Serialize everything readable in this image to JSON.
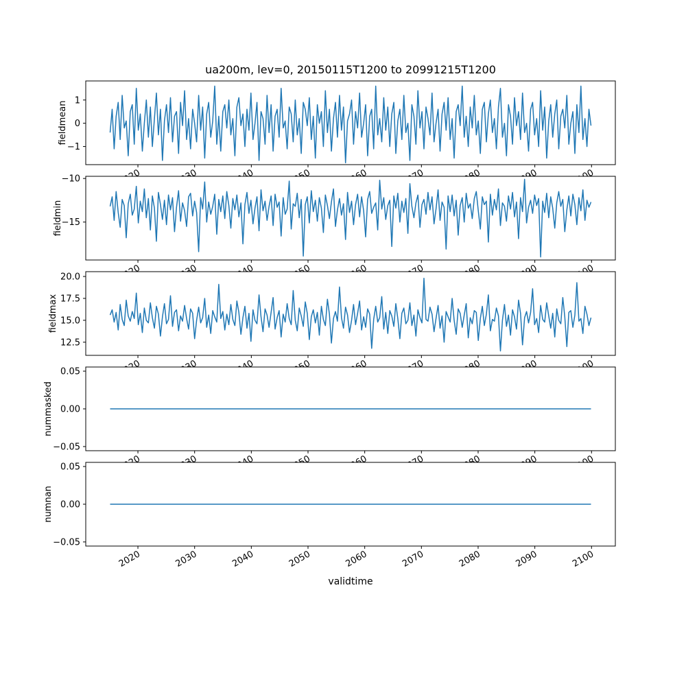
{
  "chart_data": {
    "type": "line",
    "title": "ua200m, lev=0, 20150115T1200 to 20991215T1200",
    "xlabel": "validtime",
    "line_color": "#1f77b4",
    "background_color": "#ffffff",
    "xlim": [
      2010.8,
      2104.2
    ],
    "x_range": [
      2015.1,
      2099.9
    ],
    "x_tick_rotation_deg": 30,
    "grid": false,
    "legend": "none",
    "x_ticks": [
      {
        "value": 2020,
        "label": "2020"
      },
      {
        "value": 2030,
        "label": "2030"
      },
      {
        "value": 2040,
        "label": "2040"
      },
      {
        "value": 2050,
        "label": "2050"
      },
      {
        "value": 2060,
        "label": "2060"
      },
      {
        "value": 2070,
        "label": "2070"
      },
      {
        "value": 2080,
        "label": "2080"
      },
      {
        "value": 2090,
        "label": "2090"
      },
      {
        "value": 2100,
        "label": "2100"
      }
    ],
    "subplots": [
      {
        "ylabel": "fieldmean",
        "ylim": [
          -1.78,
          1.82
        ],
        "yticks": [
          {
            "value": -1,
            "label": "−1"
          },
          {
            "value": 0,
            "label": "0"
          },
          {
            "value": 1,
            "label": "1"
          }
        ],
        "values": [
          -0.4,
          0.6,
          -1.1,
          0.3,
          0.9,
          -0.7,
          1.2,
          -0.2,
          0.1,
          -1.4,
          0.5,
          0.8,
          -0.9,
          1.5,
          -0.3,
          0.4,
          -1.2,
          0.0,
          1.0,
          -0.6,
          0.7,
          -1.0,
          0.2,
          1.3,
          -0.5,
          0.6,
          -1.6,
          0.1,
          0.8,
          -0.4,
          1.1,
          -0.8,
          0.3,
          0.5,
          -1.3,
          0.9,
          -0.1,
          1.4,
          -0.7,
          0.2,
          -1.1,
          0.6,
          0.0,
          -0.8,
          1.2,
          -0.3,
          0.7,
          -1.5,
          0.4,
          0.9,
          -0.6,
          0.1,
          1.6,
          -0.9,
          0.3,
          -1.2,
          0.5,
          0.8,
          -0.2,
          1.0,
          -0.5,
          0.2,
          -1.4,
          0.7,
          1.1,
          -0.1,
          0.4,
          -1.0,
          0.6,
          -0.3,
          1.3,
          -0.7,
          0.0,
          0.9,
          -1.6,
          0.5,
          0.2,
          -0.9,
          1.2,
          -0.4,
          0.8,
          -1.2,
          0.3,
          0.6,
          -0.6,
          1.5,
          -0.2,
          0.1,
          -1.1,
          0.7,
          0.4,
          -0.8,
          1.0,
          -0.5,
          0.2,
          -1.3,
          0.9,
          0.6,
          -0.1,
          1.1,
          -0.7,
          0.3,
          -1.5,
          0.8,
          0.0,
          0.5,
          -1.0,
          1.4,
          -0.4,
          0.6,
          -1.2,
          0.2,
          0.9,
          -0.6,
          1.2,
          -0.3,
          0.7,
          -1.7,
          0.1,
          0.4,
          1.0,
          -0.9,
          0.5,
          -0.2,
          1.3,
          -0.6,
          0.0,
          0.8,
          -1.4,
          0.3,
          0.6,
          -1.1,
          1.6,
          -0.5,
          0.2,
          -0.8,
          1.1,
          -0.3,
          0.7,
          -1.0,
          0.4,
          0.9,
          -1.3,
          0.1,
          0.6,
          -0.7,
          1.2,
          -0.4,
          0.0,
          -1.6,
          0.8,
          0.3,
          -0.9,
          1.4,
          -0.2,
          0.5,
          -1.1,
          0.7,
          0.2,
          -0.5,
          1.3,
          -0.8,
          0.0,
          0.6,
          -1.2,
          0.4,
          0.9,
          -0.3,
          1.1,
          -0.7,
          0.2,
          -1.5,
          0.5,
          0.8,
          -0.1,
          1.6,
          -0.6,
          0.3,
          -1.0,
          0.7,
          -0.2,
          1.2,
          -0.5,
          0.1,
          -1.3,
          0.6,
          0.9,
          -0.8,
          0.4,
          1.0,
          -0.4,
          0.2,
          -1.1,
          0.7,
          1.5,
          -0.6,
          0.0,
          -1.4,
          0.8,
          0.3,
          -0.9,
          1.1,
          -0.1,
          0.5,
          -0.7,
          1.3,
          -0.4,
          0.0,
          -1.2,
          0.6,
          0.9,
          -0.5,
          0.2,
          -1.0,
          1.4,
          -0.3,
          0.7,
          -1.5,
          0.1,
          0.8,
          -0.6,
          0.4,
          1.0,
          -1.1,
          0.3,
          0.6,
          -0.2,
          1.2,
          -0.9,
          0.0,
          0.5,
          -1.3,
          0.8,
          -0.4,
          1.6,
          -0.7,
          0.2,
          -1.0,
          0.6,
          -0.1
        ]
      },
      {
        "ylabel": "fieldmin",
        "ylim": [
          -19.35,
          -9.75
        ],
        "yticks": [
          {
            "value": -15,
            "label": "−15"
          },
          {
            "value": -10,
            "label": "−10"
          }
        ],
        "values": [
          -13.2,
          -12.1,
          -14.8,
          -11.5,
          -13.9,
          -15.6,
          -12.4,
          -13.1,
          -16.8,
          -12.9,
          -11.8,
          -14.2,
          -13.5,
          -10.9,
          -15.1,
          -12.6,
          -13.8,
          -11.2,
          -14.5,
          -12.3,
          -15.9,
          -12.0,
          -13.4,
          -17.2,
          -11.6,
          -13.0,
          -14.7,
          -12.5,
          -15.3,
          -11.9,
          -13.6,
          -12.2,
          -16.1,
          -13.3,
          -11.4,
          -14.9,
          -12.8,
          -13.7,
          -15.5,
          -12.1,
          -11.7,
          -14.3,
          -12.6,
          -13.9,
          -18.4,
          -12.2,
          -13.5,
          -10.4,
          -15.0,
          -12.7,
          -14.1,
          -13.2,
          -11.8,
          -16.4,
          -12.4,
          -13.8,
          -12.0,
          -14.6,
          -11.5,
          -13.1,
          -15.7,
          -12.3,
          -13.6,
          -11.9,
          -14.4,
          -12.8,
          -17.5,
          -13.0,
          -11.6,
          -14.0,
          -12.5,
          -15.2,
          -13.4,
          -12.1,
          -16.0,
          -11.3,
          -13.7,
          -12.6,
          -14.8,
          -13.2,
          -12.0,
          -15.4,
          -11.8,
          -13.3,
          -12.7,
          -16.6,
          -12.2,
          -14.1,
          -13.5,
          -10.3,
          -15.8,
          -12.9,
          -13.2,
          -11.7,
          -14.5,
          -12.4,
          -18.9,
          -13.0,
          -12.1,
          -15.1,
          -11.4,
          -13.8,
          -12.5,
          -14.9,
          -12.2,
          -13.4,
          -16.2,
          -11.9,
          -13.1,
          -14.6,
          -12.7,
          -11.2,
          -15.5,
          -13.6,
          -12.3,
          -14.2,
          -12.9,
          -17.0,
          -11.6,
          -13.9,
          -12.6,
          -15.3,
          -13.0,
          -11.8,
          -14.4,
          -12.1,
          -13.7,
          -16.7,
          -12.4,
          -11.5,
          -14.0,
          -13.3,
          -12.8,
          -15.9,
          -10.2,
          -13.5,
          -12.2,
          -14.7,
          -13.1,
          -12.5,
          -17.8,
          -12.0,
          -13.4,
          -11.7,
          -15.0,
          -12.6,
          -13.9,
          -12.3,
          -16.3,
          -10.6,
          -13.2,
          -14.5,
          -12.8,
          -11.9,
          -15.6,
          -13.0,
          -12.4,
          -14.1,
          -11.6,
          -13.6,
          -12.1,
          -15.2,
          -13.5,
          -11.3,
          -14.8,
          -12.7,
          -13.3,
          -18.1,
          -12.0,
          -13.8,
          -11.9,
          -14.3,
          -12.5,
          -16.5,
          -13.1,
          -12.2,
          -15.0,
          -11.7,
          -13.4,
          -12.9,
          -14.6,
          -12.3,
          -11.5,
          -13.7,
          -15.8,
          -12.1,
          -13.0,
          -12.6,
          -17.3,
          -11.8,
          -14.2,
          -12.4,
          -13.6,
          -11.2,
          -15.4,
          -12.8,
          -13.2,
          -14.9,
          -12.0,
          -13.5,
          -11.6,
          -14.4,
          -12.7,
          -16.9,
          -12.2,
          -13.8,
          -10.1,
          -15.1,
          -13.3,
          -12.5,
          -14.0,
          -11.9,
          -13.1,
          -12.3,
          -19.0,
          -12.6,
          -13.9,
          -11.7,
          -14.5,
          -12.1,
          -13.4,
          -15.7,
          -12.8,
          -11.5,
          -13.2,
          -12.4,
          -16.1,
          -13.6,
          -12.0,
          -14.3,
          -11.8,
          -13.0,
          -15.3,
          -12.2,
          -13.7,
          -11.3,
          -14.8,
          -12.5,
          -13.3,
          -12.7
        ]
      },
      {
        "ylabel": "fieldmax",
        "ylim": [
          11.0,
          20.55
        ],
        "yticks": [
          {
            "value": 12.5,
            "label": "12.5"
          },
          {
            "value": 15.0,
            "label": "15.0"
          },
          {
            "value": 17.5,
            "label": "17.5"
          },
          {
            "value": 20.0,
            "label": "20.0"
          }
        ],
        "values": [
          15.6,
          16.2,
          14.8,
          15.9,
          13.9,
          16.8,
          15.1,
          14.4,
          17.3,
          15.5,
          14.9,
          16.0,
          15.2,
          18.1,
          14.5,
          15.8,
          13.6,
          16.4,
          15.0,
          14.7,
          17.0,
          15.3,
          14.1,
          16.6,
          15.7,
          13.2,
          15.4,
          16.9,
          14.6,
          15.1,
          17.8,
          14.3,
          15.9,
          16.2,
          13.8,
          15.5,
          14.9,
          16.7,
          15.2,
          14.0,
          16.3,
          15.8,
          12.9,
          15.0,
          16.5,
          14.7,
          15.3,
          17.5,
          14.2,
          15.6,
          13.5,
          16.1,
          15.4,
          14.8,
          19.1,
          15.2,
          16.0,
          13.9,
          15.7,
          14.5,
          16.8,
          15.1,
          14.4,
          17.2,
          15.9,
          13.4,
          15.3,
          16.6,
          14.1,
          15.8,
          12.6,
          16.2,
          15.0,
          14.6,
          17.9,
          15.4,
          13.7,
          16.3,
          15.6,
          14.2,
          15.9,
          17.6,
          14.0,
          15.3,
          16.1,
          13.1,
          15.7,
          14.8,
          16.9,
          15.2,
          14.5,
          18.4,
          15.0,
          13.8,
          16.4,
          15.5,
          14.3,
          17.1,
          15.8,
          12.8,
          15.4,
          16.2,
          14.7,
          15.9,
          13.3,
          16.6,
          15.1,
          14.4,
          17.4,
          15.7,
          12.4,
          15.2,
          16.0,
          14.9,
          18.8,
          15.3,
          14.1,
          16.5,
          15.6,
          13.6,
          15.0,
          16.8,
          14.5,
          15.8,
          17.2,
          13.9,
          15.4,
          14.2,
          16.3,
          15.7,
          11.8,
          15.1,
          16.6,
          14.8,
          15.3,
          17.7,
          14.0,
          15.9,
          13.5,
          16.1,
          15.5,
          14.3,
          16.9,
          15.2,
          12.9,
          15.8,
          16.4,
          14.6,
          15.0,
          17.0,
          14.4,
          15.6,
          13.2,
          16.2,
          15.3,
          14.7,
          19.8,
          15.1,
          14.9,
          16.5,
          15.7,
          13.7,
          15.2,
          16.7,
          14.1,
          15.5,
          12.5,
          16.0,
          15.4,
          14.8,
          17.5,
          15.0,
          13.4,
          16.3,
          15.8,
          14.2,
          15.6,
          16.9,
          13.0,
          15.3,
          14.6,
          16.1,
          15.9,
          12.7,
          15.2,
          16.6,
          14.4,
          15.7,
          17.9,
          13.8,
          15.1,
          14.9,
          16.4,
          15.5,
          11.5,
          15.0,
          16.8,
          14.3,
          15.6,
          13.3,
          16.2,
          15.4,
          14.0,
          17.3,
          15.8,
          12.2,
          15.3,
          16.0,
          14.7,
          15.9,
          18.6,
          14.5,
          15.2,
          13.6,
          16.7,
          15.1,
          14.8,
          17.0,
          15.5,
          14.1,
          15.8,
          13.1,
          16.3,
          15.0,
          14.6,
          17.6,
          15.4,
          12.0,
          15.9,
          16.1,
          14.2,
          15.6,
          19.3,
          14.9,
          15.2,
          13.5,
          16.6,
          15.7,
          14.4,
          15.3
        ]
      },
      {
        "ylabel": "nummasked",
        "ylim": [
          -0.0555,
          0.0555
        ],
        "yticks": [
          {
            "value": -0.05,
            "label": "−0.05"
          },
          {
            "value": 0.0,
            "label": "0.00"
          },
          {
            "value": 0.05,
            "label": "0.05"
          }
        ],
        "constant": 0
      },
      {
        "ylabel": "numnan",
        "ylim": [
          -0.0555,
          0.0555
        ],
        "yticks": [
          {
            "value": -0.05,
            "label": "−0.05"
          },
          {
            "value": 0.0,
            "label": "0.00"
          },
          {
            "value": 0.05,
            "label": "0.05"
          }
        ],
        "constant": 0
      }
    ]
  }
}
